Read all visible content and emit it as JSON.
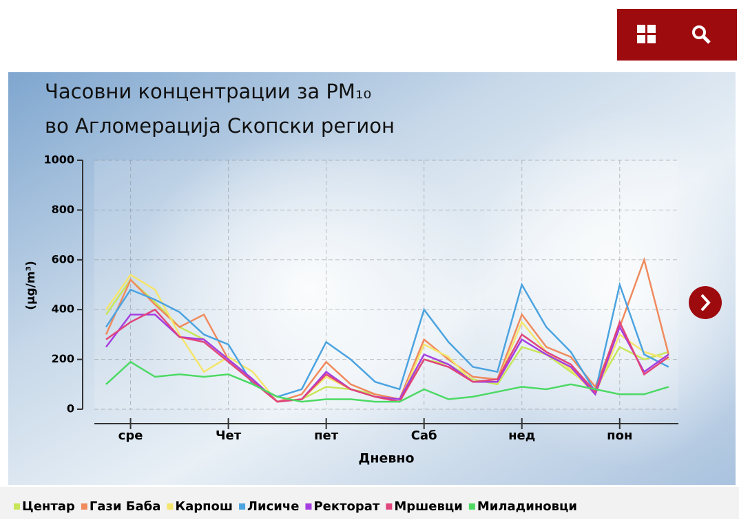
{
  "chart_data": {
    "type": "line",
    "title": [
      "Часовни концентрации за PM₁₀",
      "во Агломерација Скопски регион"
    ],
    "y_label": "(µg/m³)",
    "x_label": "Дневно",
    "x": [
      -0.25,
      0,
      0.25,
      0.5,
      0.75,
      1,
      1.25,
      1.5,
      1.75,
      2,
      2.25,
      2.5,
      2.75,
      3,
      3.25,
      3.5,
      3.75,
      4,
      4.25,
      4.5,
      4.75,
      5,
      5.25,
      5.5
    ],
    "xlim": [
      -0.37,
      5.6
    ],
    "xticks": [
      {
        "value": 0,
        "label": "сре"
      },
      {
        "value": 1,
        "label": "Чет"
      },
      {
        "value": 2,
        "label": "пет"
      },
      {
        "value": 3,
        "label": "Саб"
      },
      {
        "value": 4,
        "label": "нед"
      },
      {
        "value": 5,
        "label": "пон"
      }
    ],
    "ylim": [
      0,
      1000
    ],
    "yticks": [
      0,
      200,
      400,
      600,
      800,
      1000
    ],
    "grid": true,
    "series": [
      {
        "name": "Центар",
        "color": "#c8e65a",
        "values": [
          380,
          520,
          430,
          330,
          280,
          200,
          110,
          30,
          40,
          90,
          80,
          60,
          40,
          200,
          180,
          120,
          100,
          250,
          220,
          150,
          80,
          250,
          200,
          230
        ]
      },
      {
        "name": "Гази Баба",
        "color": "#f08a5d",
        "values": [
          300,
          520,
          420,
          330,
          380,
          200,
          120,
          30,
          60,
          190,
          100,
          60,
          40,
          280,
          200,
          130,
          120,
          380,
          250,
          210,
          90,
          330,
          600,
          220
        ]
      },
      {
        "name": "Карпош",
        "color": "#f5e56b",
        "values": [
          400,
          540,
          480,
          300,
          150,
          210,
          150,
          30,
          40,
          130,
          80,
          50,
          30,
          260,
          210,
          110,
          110,
          350,
          230,
          160,
          60,
          300,
          230,
          200
        ]
      },
      {
        "name": "Лисиче",
        "color": "#4ba3e0",
        "values": [
          330,
          480,
          440,
          390,
          300,
          260,
          100,
          50,
          80,
          270,
          200,
          110,
          80,
          400,
          270,
          170,
          150,
          500,
          330,
          230,
          70,
          500,
          220,
          170
        ]
      },
      {
        "name": "Ректорат",
        "color": "#a63de0",
        "values": [
          250,
          380,
          380,
          290,
          280,
          200,
          120,
          30,
          40,
          150,
          80,
          50,
          40,
          220,
          180,
          110,
          110,
          280,
          220,
          170,
          60,
          330,
          150,
          220
        ]
      },
      {
        "name": "Мршевци",
        "color": "#e0457b",
        "values": [
          280,
          350,
          400,
          290,
          270,
          190,
          110,
          30,
          40,
          140,
          80,
          50,
          30,
          200,
          170,
          110,
          120,
          300,
          230,
          180,
          70,
          350,
          140,
          210
        ]
      },
      {
        "name": "Миладиновци",
        "color": "#4cd964",
        "values": [
          100,
          190,
          130,
          140,
          130,
          140,
          100,
          50,
          30,
          40,
          40,
          30,
          30,
          80,
          40,
          50,
          70,
          90,
          80,
          100,
          80,
          60,
          60,
          90
        ]
      }
    ]
  }
}
